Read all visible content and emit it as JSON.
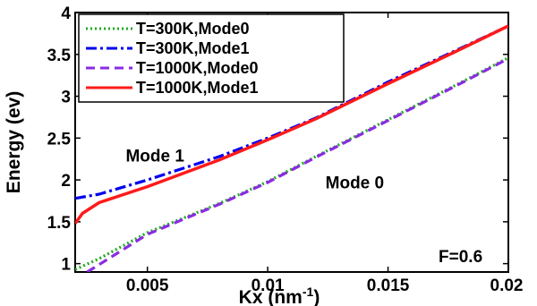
{
  "chart_data": {
    "type": "line",
    "title": "",
    "xlabel": "Kx (nm",
    "xlabel_sup": "-1",
    "xlabel_close": ")",
    "ylabel": "Energy (ev)",
    "xlim": [
      0.002,
      0.02
    ],
    "ylim": [
      0.9,
      4.0
    ],
    "xticks": [
      0.005,
      0.01,
      0.015,
      0.02
    ],
    "xtick_labels": [
      "0.005",
      "0.01",
      "0.015",
      "0.02"
    ],
    "yticks": [
      1,
      1.5,
      2,
      2.5,
      3,
      3.5,
      4
    ],
    "ytick_labels": [
      "1",
      "1.5",
      "2",
      "2.5",
      "3",
      "3.5",
      "4"
    ],
    "grid": false,
    "legend_position": "top-left",
    "series": [
      {
        "name": "T=300K,Mode0",
        "color": "#22aa22",
        "dash": "dotted",
        "x": [
          0.002,
          0.003,
          0.005,
          0.008,
          0.01,
          0.012,
          0.015,
          0.018,
          0.02
        ],
        "y": [
          0.93,
          1.06,
          1.37,
          1.72,
          1.98,
          2.28,
          2.72,
          3.16,
          3.46
        ]
      },
      {
        "name": "T=300K,Mode1",
        "color": "#0000ee",
        "dash": "dashdot",
        "x": [
          0.002,
          0.003,
          0.005,
          0.008,
          0.01,
          0.012,
          0.015,
          0.018,
          0.02
        ],
        "y": [
          1.78,
          1.83,
          2.0,
          2.28,
          2.5,
          2.74,
          3.17,
          3.57,
          3.84
        ]
      },
      {
        "name": "T=1000K,Mode0",
        "color": "#8a2be2",
        "dash": "dashed",
        "x": [
          0.0025,
          0.003,
          0.005,
          0.008,
          0.01,
          0.012,
          0.015,
          0.018,
          0.02
        ],
        "y": [
          0.9,
          0.99,
          1.35,
          1.71,
          1.97,
          2.27,
          2.71,
          3.15,
          3.45
        ]
      },
      {
        "name": "T=1000K,Mode1",
        "color": "#ff1a1a",
        "dash": "solid",
        "x": [
          0.002,
          0.0023,
          0.003,
          0.005,
          0.008,
          0.01,
          0.012,
          0.015,
          0.018,
          0.02
        ],
        "y": [
          1.48,
          1.6,
          1.73,
          1.92,
          2.24,
          2.48,
          2.73,
          3.15,
          3.56,
          3.84
        ]
      }
    ],
    "annotations": [
      {
        "text": "Mode 1",
        "x": 0.0041,
        "y": 2.22
      },
      {
        "text": "Mode 0",
        "x": 0.0124,
        "y": 1.9
      },
      {
        "text": "F=0.6",
        "x": 0.0171,
        "y": 1.02
      }
    ]
  }
}
